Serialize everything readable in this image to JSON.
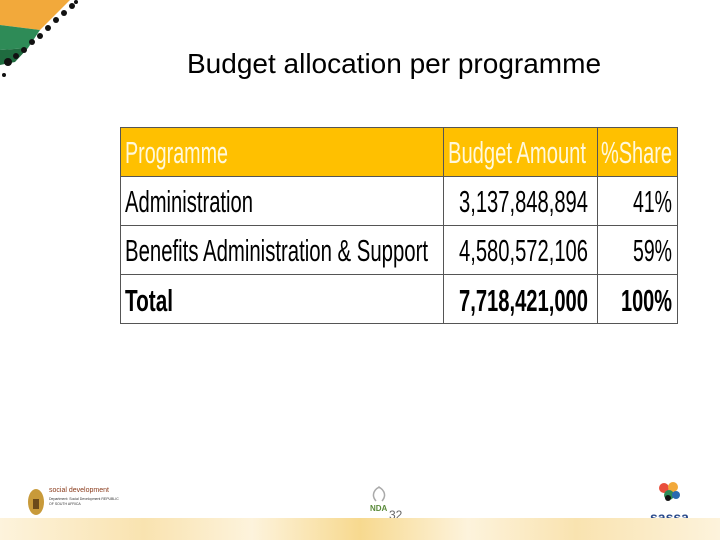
{
  "title": "Budget allocation per programme",
  "table": {
    "headers": [
      "Programme",
      "Budget Amount",
      "%Share"
    ],
    "rows": [
      [
        "Administration",
        "3,137,848,894",
        "41%"
      ],
      [
        "Benefits Administration & Support",
        "4,580,572,106",
        "59%"
      ],
      [
        "Total",
        "7,718,421,000",
        "100%"
      ]
    ]
  },
  "footer": {
    "page_number": "32",
    "logo_left": {
      "title": "social development",
      "subtitle": "Department: Social Development REPUBLIC OF SOUTH AFRICA"
    },
    "logo_center": "NDA",
    "logo_right": "sassa"
  },
  "colors": {
    "header_bg": "#FFC000",
    "header_text": "#FFF8DC"
  }
}
